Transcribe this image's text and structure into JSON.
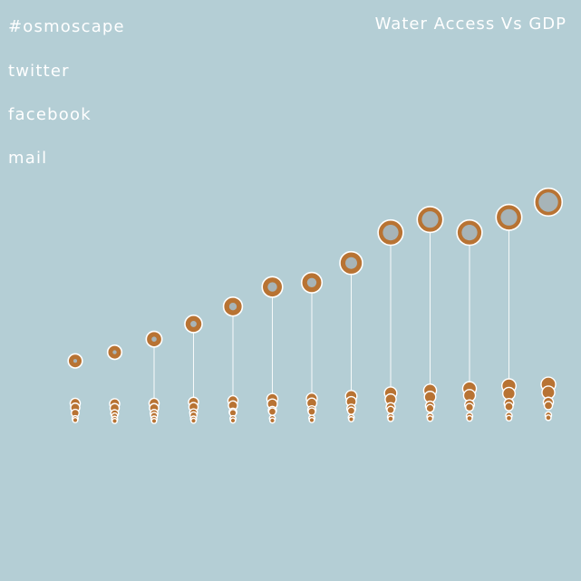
{
  "nav": {
    "brand": "#osmoscape",
    "twitter": "twitter",
    "facebook": "facebook",
    "mail": "mail"
  },
  "colors": {
    "background": "#b4ced5",
    "marker": "#b87333",
    "stroke": "#ffffff",
    "hole": "#a7b4b8"
  },
  "chart_data": {
    "type": "scatter",
    "title": "Water Access Vs GDP",
    "columns": 13,
    "top_markers": [
      {
        "level": 0.32,
        "size": 0.45,
        "hole": 0.26
      },
      {
        "level": 0.36,
        "size": 0.45,
        "hole": 0.28
      },
      {
        "level": 0.42,
        "size": 0.5,
        "hole": 0.32
      },
      {
        "level": 0.49,
        "size": 0.55,
        "hole": 0.36
      },
      {
        "level": 0.57,
        "size": 0.6,
        "hole": 0.4
      },
      {
        "level": 0.66,
        "size": 0.65,
        "hole": 0.46
      },
      {
        "level": 0.68,
        "size": 0.65,
        "hole": 0.46
      },
      {
        "level": 0.77,
        "size": 0.72,
        "hole": 0.52
      },
      {
        "level": 0.91,
        "size": 0.8,
        "hole": 0.62
      },
      {
        "level": 0.97,
        "size": 0.82,
        "hole": 0.64
      },
      {
        "level": 0.91,
        "size": 0.8,
        "hole": 0.62
      },
      {
        "level": 0.98,
        "size": 0.82,
        "hole": 0.64
      },
      {
        "level": 1.05,
        "size": 0.88,
        "hole": 0.7
      }
    ],
    "lower_groups": [
      {
        "stem": false,
        "dots": [
          {
            "l": 0.125,
            "s": 0.22
          },
          {
            "l": 0.105,
            "s": 0.2
          },
          {
            "l": 0.08,
            "s": 0.17
          },
          {
            "l": 0.055,
            "s": 0.13
          },
          {
            "l": 0.048,
            "s": 0.11
          }
        ]
      },
      {
        "stem": false,
        "dots": [
          {
            "l": 0.123,
            "s": 0.22
          },
          {
            "l": 0.103,
            "s": 0.2
          },
          {
            "l": 0.078,
            "s": 0.17
          },
          {
            "l": 0.067,
            "s": 0.13
          },
          {
            "l": 0.052,
            "s": 0.13
          },
          {
            "l": 0.044,
            "s": 0.11
          }
        ]
      },
      {
        "stem": true,
        "dots": [
          {
            "l": 0.125,
            "s": 0.22
          },
          {
            "l": 0.103,
            "s": 0.2
          },
          {
            "l": 0.079,
            "s": 0.17
          },
          {
            "l": 0.068,
            "s": 0.15
          },
          {
            "l": 0.053,
            "s": 0.13
          },
          {
            "l": 0.044,
            "s": 0.11
          }
        ]
      },
      {
        "stem": true,
        "dots": [
          {
            "l": 0.13,
            "s": 0.22
          },
          {
            "l": 0.108,
            "s": 0.2
          },
          {
            "l": 0.082,
            "s": 0.17
          },
          {
            "l": 0.07,
            "s": 0.15
          },
          {
            "l": 0.053,
            "s": 0.13
          },
          {
            "l": 0.045,
            "s": 0.11
          }
        ]
      },
      {
        "stem": true,
        "dots": [
          {
            "l": 0.137,
            "s": 0.22
          },
          {
            "l": 0.115,
            "s": 0.2
          },
          {
            "l": 0.085,
            "s": 0.17
          },
          {
            "l": 0.081,
            "s": 0.15
          },
          {
            "l": 0.055,
            "s": 0.13
          },
          {
            "l": 0.046,
            "s": 0.11
          }
        ]
      },
      {
        "stem": true,
        "dots": [
          {
            "l": 0.145,
            "s": 0.24
          },
          {
            "l": 0.122,
            "s": 0.22
          },
          {
            "l": 0.092,
            "s": 0.18
          },
          {
            "l": 0.087,
            "s": 0.16
          },
          {
            "l": 0.056,
            "s": 0.13
          },
          {
            "l": 0.046,
            "s": 0.11
          }
        ]
      },
      {
        "stem": true,
        "dots": [
          {
            "l": 0.147,
            "s": 0.24
          },
          {
            "l": 0.126,
            "s": 0.22
          },
          {
            "l": 0.095,
            "s": 0.18
          },
          {
            "l": 0.087,
            "s": 0.16
          },
          {
            "l": 0.057,
            "s": 0.13
          },
          {
            "l": 0.048,
            "s": 0.11
          }
        ]
      },
      {
        "stem": true,
        "dots": [
          {
            "l": 0.158,
            "s": 0.25
          },
          {
            "l": 0.133,
            "s": 0.22
          },
          {
            "l": 0.101,
            "s": 0.19
          },
          {
            "l": 0.091,
            "s": 0.16
          },
          {
            "l": 0.06,
            "s": 0.13
          },
          {
            "l": 0.052,
            "s": 0.11
          }
        ]
      },
      {
        "stem": true,
        "dots": [
          {
            "l": 0.172,
            "s": 0.27
          },
          {
            "l": 0.143,
            "s": 0.24
          },
          {
            "l": 0.107,
            "s": 0.2
          },
          {
            "l": 0.095,
            "s": 0.16
          },
          {
            "l": 0.063,
            "s": 0.14
          },
          {
            "l": 0.054,
            "s": 0.12
          }
        ]
      },
      {
        "stem": true,
        "dots": [
          {
            "l": 0.184,
            "s": 0.28
          },
          {
            "l": 0.154,
            "s": 0.25
          },
          {
            "l": 0.114,
            "s": 0.2
          },
          {
            "l": 0.102,
            "s": 0.17
          },
          {
            "l": 0.065,
            "s": 0.14
          },
          {
            "l": 0.055,
            "s": 0.12
          }
        ]
      },
      {
        "stem": true,
        "dots": [
          {
            "l": 0.193,
            "s": 0.3
          },
          {
            "l": 0.161,
            "s": 0.26
          },
          {
            "l": 0.119,
            "s": 0.21
          },
          {
            "l": 0.107,
            "s": 0.17
          },
          {
            "l": 0.067,
            "s": 0.14
          },
          {
            "l": 0.056,
            "s": 0.12
          }
        ]
      },
      {
        "stem": true,
        "dots": [
          {
            "l": 0.205,
            "s": 0.31
          },
          {
            "l": 0.17,
            "s": 0.27
          },
          {
            "l": 0.125,
            "s": 0.21
          },
          {
            "l": 0.11,
            "s": 0.18
          },
          {
            "l": 0.069,
            "s": 0.14
          },
          {
            "l": 0.057,
            "s": 0.12
          }
        ]
      },
      {
        "stem": false,
        "dots": [
          {
            "l": 0.212,
            "s": 0.32
          },
          {
            "l": 0.175,
            "s": 0.28
          },
          {
            "l": 0.13,
            "s": 0.22
          },
          {
            "l": 0.115,
            "s": 0.18
          },
          {
            "l": 0.071,
            "s": 0.14
          },
          {
            "l": 0.059,
            "s": 0.12
          }
        ]
      }
    ]
  }
}
